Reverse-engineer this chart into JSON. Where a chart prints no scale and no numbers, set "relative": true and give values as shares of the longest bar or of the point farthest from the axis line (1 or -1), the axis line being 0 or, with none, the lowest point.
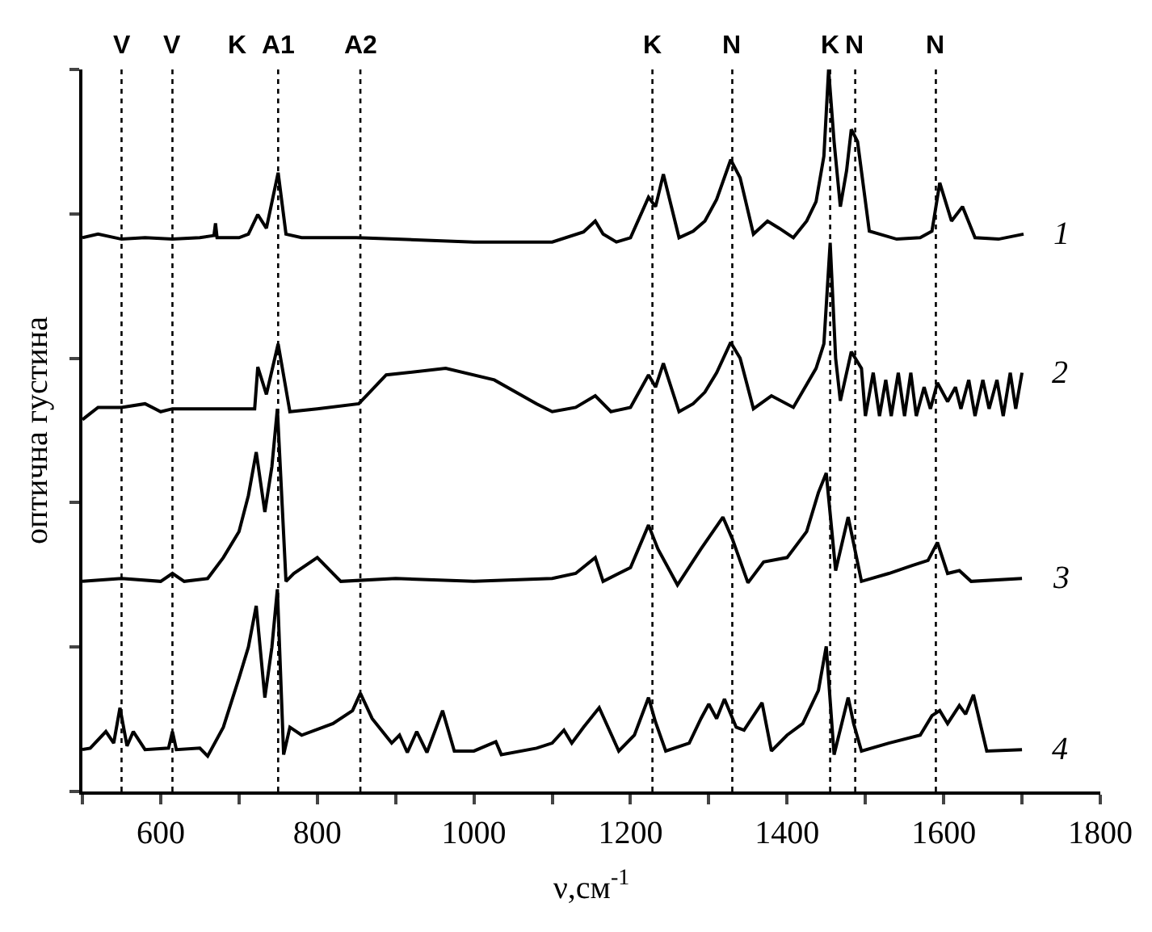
{
  "chart_data": {
    "type": "line",
    "relative": true,
    "xlabel": "ν,см$^{-1}$",
    "ylabel": "оптична густина",
    "xlim": [
      500,
      1800
    ],
    "xticks": [
      {
        "value": 500,
        "label": null
      },
      600,
      {
        "value": 700,
        "label": null
      },
      800,
      {
        "value": 900,
        "label": null
      },
      1000,
      {
        "value": 1100,
        "label": null
      },
      1200,
      {
        "value": 1300,
        "label": null
      },
      1400,
      {
        "value": 1500,
        "label": null
      },
      1600,
      {
        "value": 1700,
        "label": null
      },
      1800
    ],
    "marker": "none",
    "line_style": "solid",
    "series": [
      {
        "name": "1",
        "color": "#000000",
        "x": [
          500,
          520,
          550,
          580,
          615,
          650,
          668,
          670,
          672,
          700,
          712,
          724,
          735,
          750,
          760,
          780,
          850,
          900,
          1000,
          1100,
          1140,
          1155,
          1165,
          1182,
          1200,
          1223,
          1232,
          1242,
          1262,
          1280,
          1295,
          1310,
          1328,
          1340,
          1357,
          1375,
          1390,
          1408,
          1425,
          1437,
          1447,
          1453,
          1460,
          1468,
          1476,
          1482,
          1490,
          1505,
          1540,
          1570,
          1585,
          1595,
          1610,
          1624,
          1640,
          1670,
          1702
        ],
        "values": [
          0.767,
          0.772,
          0.765,
          0.767,
          0.765,
          0.767,
          0.77,
          0.787,
          0.767,
          0.767,
          0.772,
          0.799,
          0.78,
          0.857,
          0.772,
          0.767,
          0.767,
          0.765,
          0.761,
          0.761,
          0.775,
          0.79,
          0.772,
          0.761,
          0.767,
          0.823,
          0.81,
          0.855,
          0.767,
          0.776,
          0.79,
          0.82,
          0.875,
          0.85,
          0.772,
          0.79,
          0.78,
          0.767,
          0.79,
          0.817,
          0.88,
          1.0,
          0.9,
          0.81,
          0.86,
          0.917,
          0.9,
          0.776,
          0.765,
          0.767,
          0.776,
          0.843,
          0.79,
          0.81,
          0.767,
          0.765,
          0.772
        ]
      },
      {
        "name": "2",
        "color": "#000000",
        "x": [
          500,
          520,
          550,
          580,
          600,
          615,
          720,
          724,
          735,
          750,
          765,
          800,
          853,
          888,
          964,
          1026,
          1080,
          1100,
          1130,
          1155,
          1175,
          1200,
          1223,
          1232,
          1242,
          1262,
          1280,
          1295,
          1310,
          1328,
          1340,
          1357,
          1380,
          1408,
          1437,
          1447,
          1455,
          1462,
          1468,
          1482,
          1495,
          1500,
          1510,
          1518,
          1526,
          1533,
          1542,
          1550,
          1558,
          1565,
          1575,
          1583,
          1592,
          1605,
          1615,
          1622,
          1632,
          1640,
          1650,
          1658,
          1668,
          1676,
          1685,
          1692,
          1700
        ],
        "values": [
          0.515,
          0.532,
          0.532,
          0.537,
          0.526,
          0.53,
          0.53,
          0.588,
          0.55,
          0.62,
          0.526,
          0.53,
          0.537,
          0.577,
          0.586,
          0.57,
          0.537,
          0.526,
          0.532,
          0.548,
          0.526,
          0.532,
          0.577,
          0.56,
          0.593,
          0.526,
          0.537,
          0.553,
          0.58,
          0.622,
          0.6,
          0.53,
          0.548,
          0.532,
          0.586,
          0.62,
          0.76,
          0.6,
          0.541,
          0.609,
          0.586,
          0.52,
          0.58,
          0.52,
          0.57,
          0.52,
          0.58,
          0.52,
          0.58,
          0.52,
          0.56,
          0.53,
          0.566,
          0.54,
          0.56,
          0.53,
          0.57,
          0.52,
          0.57,
          0.53,
          0.57,
          0.52,
          0.58,
          0.53,
          0.58
        ]
      },
      {
        "name": "3",
        "color": "#000000",
        "x": [
          500,
          550,
          600,
          615,
          630,
          660,
          680,
          700,
          712,
          722,
          733,
          742,
          749,
          760,
          770,
          800,
          830,
          900,
          1000,
          1100,
          1130,
          1155,
          1165,
          1200,
          1223,
          1235,
          1260,
          1290,
          1318,
          1330,
          1350,
          1370,
          1400,
          1425,
          1440,
          1450,
          1462,
          1478,
          1495,
          1530,
          1560,
          1580,
          1592,
          1605,
          1620,
          1635,
          1700
        ],
        "values": [
          0.291,
          0.295,
          0.291,
          0.302,
          0.291,
          0.295,
          0.324,
          0.36,
          0.41,
          0.47,
          0.387,
          0.45,
          0.53,
          0.291,
          0.302,
          0.324,
          0.291,
          0.295,
          0.291,
          0.295,
          0.302,
          0.324,
          0.291,
          0.31,
          0.369,
          0.336,
          0.286,
          0.336,
          0.38,
          0.35,
          0.289,
          0.318,
          0.324,
          0.36,
          0.414,
          0.441,
          0.306,
          0.38,
          0.291,
          0.302,
          0.313,
          0.32,
          0.345,
          0.302,
          0.306,
          0.291,
          0.295
        ]
      },
      {
        "name": "4",
        "color": "#000000",
        "x": [
          500,
          510,
          530,
          540,
          548,
          557,
          565,
          580,
          610,
          615,
          620,
          650,
          660,
          680,
          700,
          712,
          722,
          733,
          742,
          749,
          757,
          765,
          780,
          820,
          845,
          855,
          870,
          895,
          905,
          915,
          927,
          940,
          960,
          975,
          1000,
          1028,
          1035,
          1080,
          1100,
          1115,
          1125,
          1140,
          1160,
          1185,
          1205,
          1223,
          1232,
          1245,
          1275,
          1290,
          1300,
          1310,
          1320,
          1335,
          1345,
          1368,
          1380,
          1400,
          1420,
          1440,
          1450,
          1460,
          1478,
          1485,
          1495,
          1530,
          1570,
          1585,
          1595,
          1605,
          1620,
          1628,
          1638,
          1655,
          1700
        ],
        "values": [
          0.058,
          0.06,
          0.083,
          0.067,
          0.116,
          0.063,
          0.083,
          0.058,
          0.06,
          0.083,
          0.058,
          0.06,
          0.049,
          0.089,
          0.157,
          0.2,
          0.257,
          0.13,
          0.2,
          0.28,
          0.051,
          0.089,
          0.078,
          0.094,
          0.112,
          0.136,
          0.101,
          0.067,
          0.078,
          0.054,
          0.083,
          0.054,
          0.112,
          0.056,
          0.056,
          0.069,
          0.051,
          0.06,
          0.067,
          0.085,
          0.067,
          0.089,
          0.116,
          0.056,
          0.078,
          0.13,
          0.096,
          0.056,
          0.067,
          0.101,
          0.121,
          0.101,
          0.128,
          0.089,
          0.085,
          0.123,
          0.056,
          0.078,
          0.094,
          0.14,
          0.201,
          0.051,
          0.13,
          0.094,
          0.056,
          0.067,
          0.078,
          0.105,
          0.112,
          0.094,
          0.119,
          0.107,
          0.134,
          0.056,
          0.058
        ]
      }
    ],
    "ref_lines": [
      {
        "axis": "x",
        "value": 550,
        "label": "V",
        "line_style": "dotted"
      },
      {
        "axis": "x",
        "value": 615,
        "label": "V",
        "line_style": "dotted"
      },
      {
        "axis": "x",
        "value": 750,
        "label": "A1",
        "line_style": "dotted"
      },
      {
        "axis": "x",
        "value": 855,
        "label": "A2",
        "line_style": "dotted"
      },
      {
        "axis": "x",
        "value": 1228,
        "label": "K",
        "line_style": "dotted"
      },
      {
        "axis": "x",
        "value": 1330,
        "label": "N",
        "line_style": "dotted"
      },
      {
        "axis": "x",
        "value": 1455,
        "label": "K",
        "line_style": "dotted"
      },
      {
        "axis": "x",
        "value": 1487,
        "label": "N",
        "line_style": "dotted"
      },
      {
        "axis": "x",
        "value": 1590,
        "label": "N",
        "line_style": "dotted"
      }
    ],
    "annotations": [
      "K"
    ]
  }
}
